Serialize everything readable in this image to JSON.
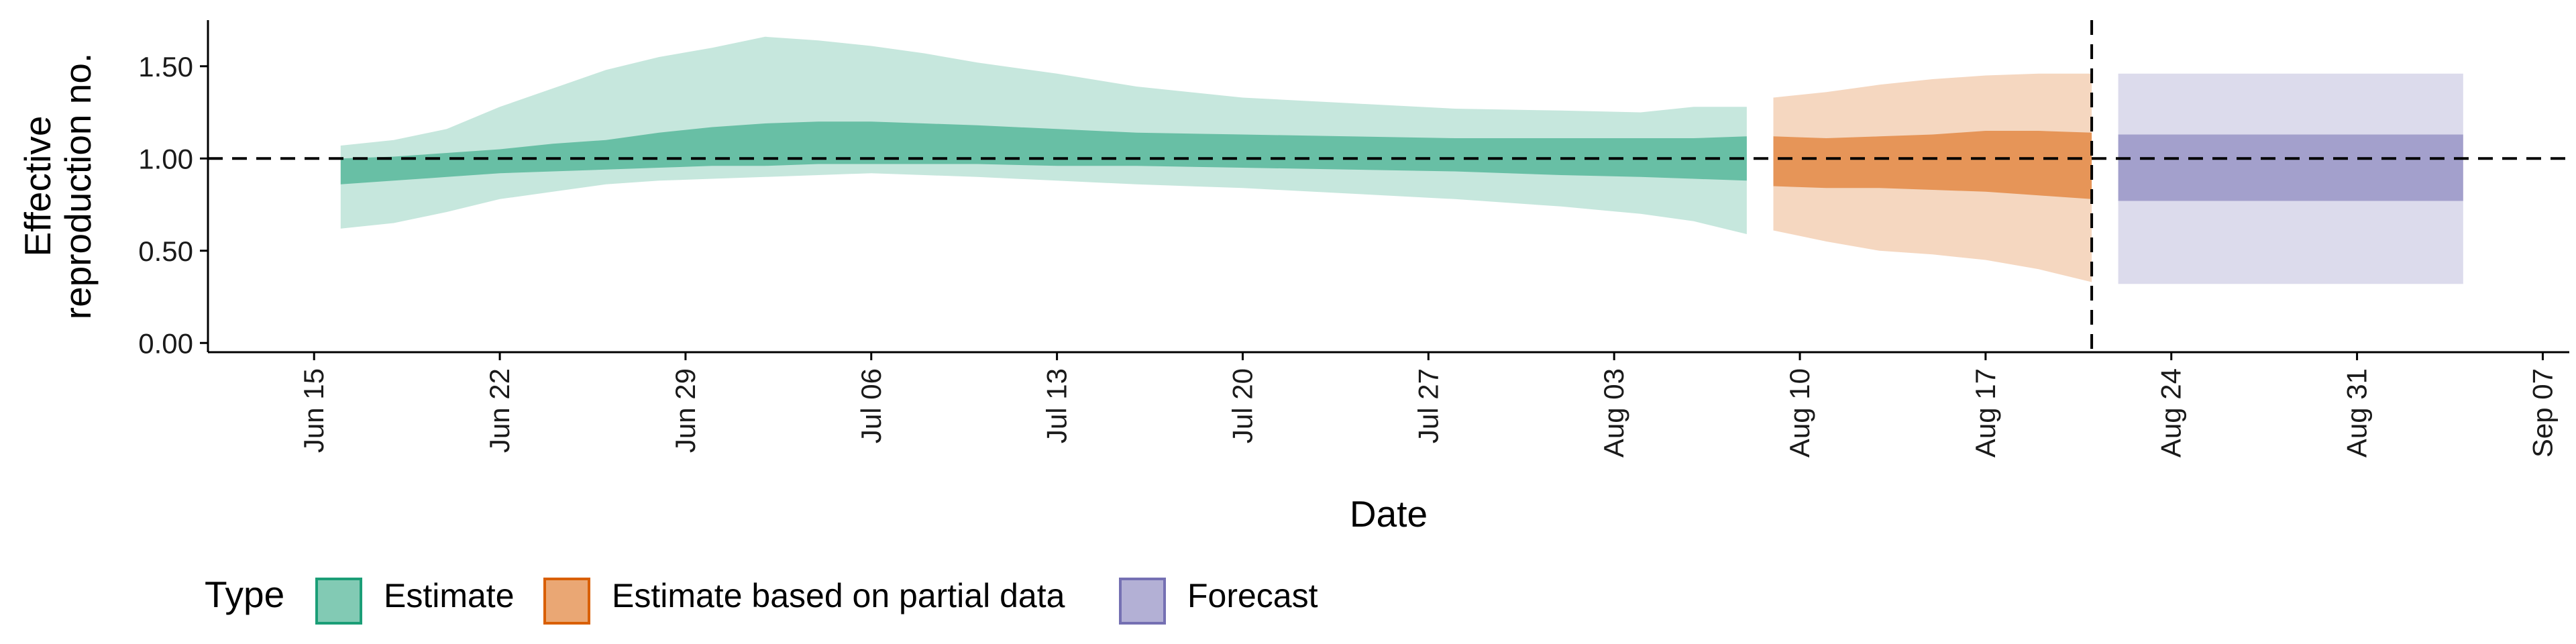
{
  "chart_data": {
    "type": "area",
    "xlabel": "Date",
    "ylabel_lines": [
      "Effective",
      "reproduction no."
    ],
    "ylim": [
      -0.05,
      1.75
    ],
    "xlim": [
      "2020-06-11",
      "2020-09-08"
    ],
    "yticks": [
      0.0,
      0.5,
      1.0,
      1.5
    ],
    "ytick_labels": [
      "0.00",
      "0.50",
      "1.00",
      "1.50"
    ],
    "xticks": [
      "2020-06-15",
      "2020-06-22",
      "2020-06-29",
      "2020-07-06",
      "2020-07-13",
      "2020-07-20",
      "2020-07-27",
      "2020-08-03",
      "2020-08-10",
      "2020-08-17",
      "2020-08-24",
      "2020-08-31",
      "2020-09-07"
    ],
    "xtick_labels": [
      "Jun 15",
      "Jun 22",
      "Jun 29",
      "Jul 06",
      "Jul 13",
      "Jul 20",
      "Jul 27",
      "Aug 03",
      "Aug 10",
      "Aug 17",
      "Aug 24",
      "Aug 31",
      "Sep 07"
    ],
    "hline": 1.0,
    "vline": "2020-08-21",
    "grid": false,
    "legend": {
      "title": "Type",
      "position": "bottom",
      "entries": [
        "Estimate",
        "Estimate based on partial data",
        "Forecast"
      ]
    },
    "series": [
      {
        "name": "Estimate",
        "fill": "#1b9e77",
        "outer_alpha": 0.25,
        "inner_alpha": 0.55,
        "points": [
          {
            "x": "2020-06-16",
            "lo90": 0.62,
            "lo50": 0.86,
            "hi50": 1.0,
            "hi90": 1.07
          },
          {
            "x": "2020-06-18",
            "lo90": 0.65,
            "lo50": 0.88,
            "hi50": 1.01,
            "hi90": 1.1
          },
          {
            "x": "2020-06-20",
            "lo90": 0.71,
            "lo50": 0.9,
            "hi50": 1.03,
            "hi90": 1.16
          },
          {
            "x": "2020-06-22",
            "lo90": 0.78,
            "lo50": 0.92,
            "hi50": 1.05,
            "hi90": 1.28
          },
          {
            "x": "2020-06-24",
            "lo90": 0.82,
            "lo50": 0.93,
            "hi50": 1.08,
            "hi90": 1.38
          },
          {
            "x": "2020-06-26",
            "lo90": 0.86,
            "lo50": 0.94,
            "hi50": 1.1,
            "hi90": 1.48
          },
          {
            "x": "2020-06-28",
            "lo90": 0.88,
            "lo50": 0.95,
            "hi50": 1.14,
            "hi90": 1.55
          },
          {
            "x": "2020-06-30",
            "lo90": 0.89,
            "lo50": 0.96,
            "hi50": 1.17,
            "hi90": 1.6
          },
          {
            "x": "2020-07-02",
            "lo90": 0.9,
            "lo50": 0.96,
            "hi50": 1.19,
            "hi90": 1.66
          },
          {
            "x": "2020-07-04",
            "lo90": 0.91,
            "lo50": 0.97,
            "hi50": 1.2,
            "hi90": 1.64
          },
          {
            "x": "2020-07-06",
            "lo90": 0.92,
            "lo50": 0.97,
            "hi50": 1.2,
            "hi90": 1.61
          },
          {
            "x": "2020-07-08",
            "lo90": 0.91,
            "lo50": 0.97,
            "hi50": 1.19,
            "hi90": 1.57
          },
          {
            "x": "2020-07-10",
            "lo90": 0.9,
            "lo50": 0.97,
            "hi50": 1.18,
            "hi90": 1.52
          },
          {
            "x": "2020-07-13",
            "lo90": 0.88,
            "lo50": 0.96,
            "hi50": 1.16,
            "hi90": 1.46
          },
          {
            "x": "2020-07-16",
            "lo90": 0.86,
            "lo50": 0.96,
            "hi50": 1.14,
            "hi90": 1.39
          },
          {
            "x": "2020-07-20",
            "lo90": 0.84,
            "lo50": 0.95,
            "hi50": 1.13,
            "hi90": 1.33
          },
          {
            "x": "2020-07-24",
            "lo90": 0.81,
            "lo50": 0.94,
            "hi50": 1.12,
            "hi90": 1.3
          },
          {
            "x": "2020-07-28",
            "lo90": 0.78,
            "lo50": 0.93,
            "hi50": 1.11,
            "hi90": 1.27
          },
          {
            "x": "2020-08-01",
            "lo90": 0.74,
            "lo50": 0.91,
            "hi50": 1.11,
            "hi90": 1.26
          },
          {
            "x": "2020-08-04",
            "lo90": 0.7,
            "lo50": 0.9,
            "hi50": 1.11,
            "hi90": 1.25
          },
          {
            "x": "2020-08-06",
            "lo90": 0.66,
            "lo50": 0.89,
            "hi50": 1.11,
            "hi90": 1.28
          },
          {
            "x": "2020-08-08",
            "lo90": 0.59,
            "lo50": 0.88,
            "hi50": 1.12,
            "hi90": 1.28
          }
        ]
      },
      {
        "name": "Estimate based on partial data",
        "fill": "#d95f02",
        "outer_alpha": 0.25,
        "inner_alpha": 0.55,
        "points": [
          {
            "x": "2020-08-09",
            "lo90": 0.61,
            "lo50": 0.85,
            "hi50": 1.12,
            "hi90": 1.33
          },
          {
            "x": "2020-08-11",
            "lo90": 0.55,
            "lo50": 0.84,
            "hi50": 1.11,
            "hi90": 1.36
          },
          {
            "x": "2020-08-13",
            "lo90": 0.5,
            "lo50": 0.84,
            "hi50": 1.12,
            "hi90": 1.4
          },
          {
            "x": "2020-08-15",
            "lo90": 0.48,
            "lo50": 0.83,
            "hi50": 1.13,
            "hi90": 1.43
          },
          {
            "x": "2020-08-17",
            "lo90": 0.45,
            "lo50": 0.82,
            "hi50": 1.15,
            "hi90": 1.45
          },
          {
            "x": "2020-08-19",
            "lo90": 0.4,
            "lo50": 0.8,
            "hi50": 1.15,
            "hi90": 1.46
          },
          {
            "x": "2020-08-21",
            "lo90": 0.33,
            "lo50": 0.78,
            "hi50": 1.14,
            "hi90": 1.46
          }
        ]
      },
      {
        "name": "Forecast",
        "fill": "#7570b3",
        "outer_alpha": 0.25,
        "inner_alpha": 0.55,
        "points": [
          {
            "x": "2020-08-22",
            "lo90": 0.32,
            "lo50": 0.77,
            "hi50": 1.13,
            "hi90": 1.46
          },
          {
            "x": "2020-09-04",
            "lo90": 0.32,
            "lo50": 0.77,
            "hi50": 1.13,
            "hi90": 1.46
          }
        ]
      }
    ]
  }
}
